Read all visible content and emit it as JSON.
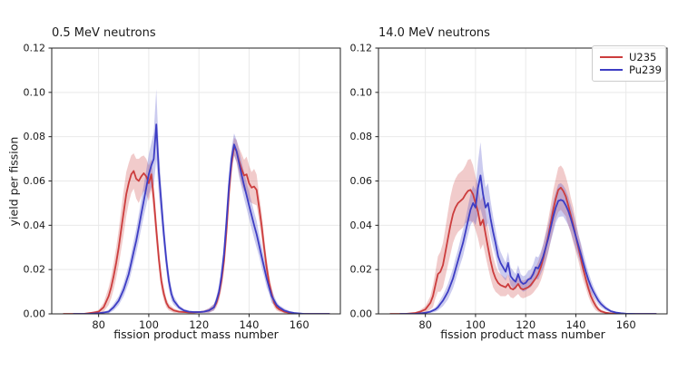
{
  "figure_title": "",
  "chart_data": [
    {
      "type": "line",
      "title": "0.5 MeV neutrons",
      "xlabel": "fission product mass number",
      "ylabel": "yield per fission",
      "xlim": [
        61.3,
        176.4
      ],
      "ylim": [
        0,
        0.12
      ],
      "xticks": [
        80,
        100,
        120,
        140,
        160
      ],
      "yticks": [
        0,
        0.02,
        0.04,
        0.06,
        0.08,
        0.1,
        0.12
      ],
      "grid": true,
      "band_style": "shaded uncertainty band y±e",
      "series": [
        {
          "name": "U235",
          "color": "#cc3d3d",
          "x": [
            66,
            70,
            74,
            76,
            78,
            80,
            82,
            84,
            85,
            86,
            87,
            88,
            89,
            90,
            91,
            92,
            93,
            94,
            95,
            96,
            97,
            98,
            99,
            100,
            101,
            102,
            103,
            104,
            105,
            106,
            107,
            108,
            110,
            112,
            114,
            116,
            118,
            120,
            122,
            124,
            126,
            127,
            128,
            129,
            130,
            131,
            132,
            133,
            134,
            135,
            136,
            137,
            138,
            139,
            140,
            141,
            142,
            143,
            144,
            145,
            146,
            147,
            148,
            149,
            150,
            151,
            152,
            154,
            156,
            158,
            162,
            166,
            172
          ],
          "y": [
            0,
            0,
            0,
            0.0003,
            0.0006,
            0.001,
            0.003,
            0.008,
            0.012,
            0.017,
            0.023,
            0.03,
            0.038,
            0.046,
            0.054,
            0.059,
            0.063,
            0.0645,
            0.061,
            0.06,
            0.062,
            0.0635,
            0.062,
            0.059,
            0.063,
            0.052,
            0.038,
            0.025,
            0.015,
            0.009,
            0.005,
            0.003,
            0.0015,
            0.001,
            0.0008,
            0.0007,
            0.0007,
            0.0008,
            0.001,
            0.0015,
            0.003,
            0.005,
            0.009,
            0.015,
            0.024,
            0.038,
            0.055,
            0.068,
            0.0755,
            0.0735,
            0.069,
            0.0655,
            0.0625,
            0.063,
            0.059,
            0.057,
            0.0575,
            0.056,
            0.048,
            0.04,
            0.03,
            0.021,
            0.014,
            0.009,
            0.005,
            0.003,
            0.002,
            0.001,
            0.0005,
            0.0002,
            0,
            0,
            0
          ],
          "e": [
            0,
            0,
            0,
            0.0002,
            0.0004,
            0.0008,
            0.002,
            0.004,
            0.005,
            0.006,
            0.007,
            0.008,
            0.009,
            0.01,
            0.01,
            0.009,
            0.0085,
            0.008,
            0.009,
            0.01,
            0.009,
            0.008,
            0.008,
            0.008,
            0.007,
            0.007,
            0.006,
            0.005,
            0.004,
            0.003,
            0.002,
            0.0015,
            0.001,
            0.0006,
            0.0004,
            0.0004,
            0.0004,
            0.0004,
            0.0005,
            0.001,
            0.0015,
            0.002,
            0.003,
            0.004,
            0.005,
            0.006,
            0.006,
            0.005,
            0.004,
            0.005,
            0.006,
            0.007,
            0.007,
            0.008,
            0.008,
            0.007,
            0.008,
            0.007,
            0.006,
            0.006,
            0.005,
            0.004,
            0.0035,
            0.003,
            0.002,
            0.0015,
            0.001,
            0.0007,
            0.0004,
            0.0002,
            0,
            0,
            0
          ]
        },
        {
          "name": "Pu239",
          "color": "#3d3dc4",
          "x": [
            70,
            76,
            80,
            82,
            84,
            86,
            88,
            90,
            92,
            93,
            94,
            95,
            96,
            97,
            98,
            99,
            100,
            101,
            102,
            103,
            104,
            105,
            106,
            107,
            108,
            109,
            110,
            112,
            114,
            116,
            118,
            120,
            122,
            124,
            126,
            127,
            128,
            129,
            130,
            131,
            132,
            133,
            134,
            135,
            136,
            137,
            138,
            139,
            140,
            141,
            142,
            143,
            144,
            145,
            146,
            147,
            148,
            149,
            150,
            151,
            152,
            154,
            156,
            158,
            162,
            166,
            172
          ],
          "y": [
            0,
            0,
            0.0003,
            0.0006,
            0.001,
            0.003,
            0.006,
            0.011,
            0.018,
            0.023,
            0.028,
            0.033,
            0.039,
            0.045,
            0.051,
            0.057,
            0.063,
            0.067,
            0.07,
            0.0855,
            0.064,
            0.05,
            0.036,
            0.024,
            0.015,
            0.009,
            0.006,
            0.003,
            0.0015,
            0.001,
            0.0008,
            0.0008,
            0.001,
            0.0015,
            0.003,
            0.006,
            0.01,
            0.017,
            0.027,
            0.042,
            0.058,
            0.07,
            0.0765,
            0.0735,
            0.068,
            0.063,
            0.058,
            0.0535,
            0.049,
            0.0445,
            0.04,
            0.036,
            0.031,
            0.026,
            0.021,
            0.016,
            0.012,
            0.008,
            0.006,
            0.004,
            0.003,
            0.0015,
            0.0008,
            0.0004,
            0,
            0,
            0
          ],
          "e": [
            0,
            0,
            0.0002,
            0.0004,
            0.0008,
            0.0015,
            0.002,
            0.003,
            0.004,
            0.0045,
            0.005,
            0.0055,
            0.006,
            0.0065,
            0.007,
            0.008,
            0.009,
            0.01,
            0.012,
            0.016,
            0.01,
            0.008,
            0.006,
            0.005,
            0.004,
            0.003,
            0.002,
            0.001,
            0.0008,
            0.0005,
            0.0004,
            0.0004,
            0.0005,
            0.001,
            0.0015,
            0.002,
            0.003,
            0.004,
            0.005,
            0.006,
            0.006,
            0.005,
            0.005,
            0.005,
            0.006,
            0.006,
            0.006,
            0.006,
            0.006,
            0.006,
            0.006,
            0.006,
            0.005,
            0.005,
            0.004,
            0.004,
            0.003,
            0.003,
            0.002,
            0.0015,
            0.001,
            0.001,
            0.0005,
            0.0003,
            0,
            0,
            0
          ]
        }
      ]
    },
    {
      "type": "line",
      "title": "14.0 MeV neutrons",
      "xlabel": "fission product mass number",
      "xlim": [
        61.3,
        176.4
      ],
      "ylim": [
        0,
        0.12
      ],
      "xticks": [
        80,
        100,
        120,
        140,
        160
      ],
      "yticks": [
        0,
        0.02,
        0.04,
        0.06,
        0.08,
        0.1,
        0.12
      ],
      "grid": true,
      "band_style": "shaded uncertainty band y±e",
      "legend": {
        "position": "upper right",
        "entries": [
          {
            "label": "U235"
          },
          {
            "label": "Pu239"
          }
        ]
      },
      "series": [
        {
          "name": "U235",
          "color": "#cc3d3d",
          "x": [
            66,
            72,
            76,
            78,
            80,
            82,
            83,
            84,
            85,
            86,
            87,
            88,
            89,
            90,
            91,
            92,
            93,
            94,
            95,
            96,
            97,
            98,
            99,
            100,
            101,
            102,
            103,
            104,
            105,
            106,
            107,
            108,
            109,
            110,
            111,
            112,
            113,
            114,
            115,
            116,
            117,
            118,
            119,
            120,
            121,
            122,
            123,
            124,
            125,
            126,
            127,
            128,
            129,
            130,
            131,
            132,
            133,
            134,
            135,
            136,
            137,
            138,
            139,
            140,
            141,
            142,
            143,
            144,
            145,
            146,
            147,
            148,
            149,
            150,
            152,
            154,
            158,
            164,
            172
          ],
          "y": [
            0,
            0,
            0.0004,
            0.001,
            0.002,
            0.005,
            0.008,
            0.013,
            0.018,
            0.019,
            0.022,
            0.028,
            0.034,
            0.04,
            0.045,
            0.048,
            0.05,
            0.051,
            0.052,
            0.054,
            0.0555,
            0.056,
            0.054,
            0.05,
            0.046,
            0.04,
            0.0425,
            0.036,
            0.03,
            0.024,
            0.019,
            0.016,
            0.014,
            0.013,
            0.0125,
            0.012,
            0.0135,
            0.0115,
            0.011,
            0.012,
            0.0135,
            0.0115,
            0.011,
            0.0115,
            0.012,
            0.013,
            0.0145,
            0.016,
            0.018,
            0.021,
            0.025,
            0.03,
            0.035,
            0.041,
            0.047,
            0.052,
            0.056,
            0.057,
            0.0555,
            0.053,
            0.049,
            0.0445,
            0.04,
            0.035,
            0.03,
            0.025,
            0.02,
            0.0155,
            0.0115,
            0.008,
            0.0055,
            0.0035,
            0.002,
            0.0012,
            0.0005,
            0.0002,
            0,
            0,
            0
          ],
          "e": [
            0,
            0,
            0.0003,
            0.0008,
            0.0015,
            0.003,
            0.005,
            0.006,
            0.008,
            0.009,
            0.01,
            0.011,
            0.012,
            0.013,
            0.013,
            0.013,
            0.013,
            0.013,
            0.013,
            0.013,
            0.014,
            0.014,
            0.013,
            0.012,
            0.012,
            0.011,
            0.011,
            0.01,
            0.009,
            0.008,
            0.007,
            0.006,
            0.005,
            0.005,
            0.0045,
            0.004,
            0.0045,
            0.004,
            0.004,
            0.004,
            0.0045,
            0.004,
            0.004,
            0.004,
            0.004,
            0.0045,
            0.005,
            0.005,
            0.0055,
            0.006,
            0.0065,
            0.007,
            0.0075,
            0.008,
            0.009,
            0.009,
            0.01,
            0.01,
            0.01,
            0.009,
            0.009,
            0.008,
            0.008,
            0.007,
            0.006,
            0.006,
            0.005,
            0.004,
            0.0035,
            0.003,
            0.0025,
            0.002,
            0.0012,
            0.0008,
            0.0004,
            0.0002,
            0,
            0,
            0
          ]
        },
        {
          "name": "Pu239",
          "color": "#3d3dc4",
          "x": [
            70,
            76,
            80,
            82,
            84,
            85,
            86,
            87,
            88,
            89,
            90,
            91,
            92,
            93,
            94,
            95,
            96,
            97,
            98,
            99,
            100,
            101,
            102,
            103,
            104,
            105,
            106,
            107,
            108,
            109,
            110,
            111,
            112,
            113,
            114,
            115,
            116,
            117,
            118,
            119,
            120,
            121,
            122,
            123,
            124,
            125,
            126,
            127,
            128,
            129,
            130,
            131,
            132,
            133,
            134,
            135,
            136,
            137,
            138,
            139,
            140,
            141,
            142,
            143,
            144,
            145,
            146,
            147,
            148,
            149,
            150,
            151,
            152,
            154,
            156,
            158,
            160,
            164,
            168,
            172
          ],
          "y": [
            0,
            0,
            0.0005,
            0.001,
            0.002,
            0.003,
            0.0045,
            0.006,
            0.008,
            0.01,
            0.013,
            0.016,
            0.02,
            0.024,
            0.028,
            0.032,
            0.037,
            0.042,
            0.047,
            0.05,
            0.048,
            0.057,
            0.0625,
            0.054,
            0.048,
            0.05,
            0.043,
            0.037,
            0.032,
            0.026,
            0.023,
            0.021,
            0.019,
            0.023,
            0.017,
            0.0155,
            0.0145,
            0.018,
            0.0145,
            0.0135,
            0.014,
            0.0155,
            0.016,
            0.018,
            0.021,
            0.0205,
            0.023,
            0.026,
            0.03,
            0.034,
            0.039,
            0.044,
            0.048,
            0.051,
            0.0515,
            0.051,
            0.049,
            0.0465,
            0.043,
            0.039,
            0.035,
            0.031,
            0.027,
            0.023,
            0.019,
            0.0155,
            0.0125,
            0.01,
            0.008,
            0.006,
            0.0045,
            0.0035,
            0.0025,
            0.0012,
            0.0006,
            0.0003,
            0.0001,
            0,
            0,
            0
          ],
          "e": [
            0,
            0,
            0.0003,
            0.0006,
            0.001,
            0.0015,
            0.002,
            0.0025,
            0.003,
            0.0035,
            0.004,
            0.0045,
            0.005,
            0.005,
            0.0055,
            0.006,
            0.006,
            0.0065,
            0.007,
            0.008,
            0.008,
            0.012,
            0.015,
            0.011,
            0.009,
            0.009,
            0.008,
            0.007,
            0.006,
            0.0055,
            0.005,
            0.0045,
            0.004,
            0.005,
            0.004,
            0.004,
            0.0035,
            0.004,
            0.0035,
            0.0035,
            0.0035,
            0.004,
            0.004,
            0.0045,
            0.005,
            0.005,
            0.005,
            0.0055,
            0.006,
            0.006,
            0.0065,
            0.007,
            0.007,
            0.0075,
            0.0075,
            0.007,
            0.007,
            0.0065,
            0.006,
            0.006,
            0.0055,
            0.005,
            0.005,
            0.0045,
            0.004,
            0.0035,
            0.003,
            0.0025,
            0.002,
            0.0018,
            0.0015,
            0.0012,
            0.001,
            0.0006,
            0.0004,
            0.0002,
            0.0001,
            0,
            0,
            0
          ]
        }
      ]
    }
  ]
}
